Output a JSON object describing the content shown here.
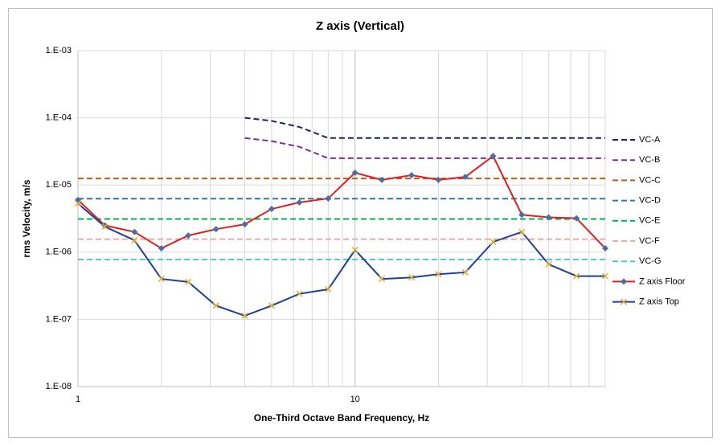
{
  "chart_data": {
    "type": "line",
    "title": "Z axis (Vertical)",
    "x_label": "One-Third Octave Band Frequency, Hz",
    "y_label": "rms Velocity, m/s",
    "x_log": true,
    "y_log": true,
    "grid": true,
    "legend": "right",
    "xlim": [
      1,
      80
    ],
    "xticks": [
      1,
      10
    ],
    "ylim": [
      1e-08,
      0.001
    ],
    "yticks": [
      {
        "value": 1e-08,
        "label": "1.E-08"
      },
      {
        "value": 1e-07,
        "label": "1.E-07"
      },
      {
        "value": 1e-06,
        "label": "1.E-06"
      },
      {
        "value": 1e-05,
        "label": "1.E-05"
      },
      {
        "value": 0.0001,
        "label": "1.E-04"
      },
      {
        "value": 0.001,
        "label": "1.E-03"
      }
    ],
    "x": [
      1,
      1.25,
      1.6,
      2,
      2.5,
      3.15,
      4,
      5,
      6.3,
      8,
      10,
      12.5,
      16,
      20,
      25,
      31.5,
      40,
      50,
      63,
      80
    ],
    "series": [
      {
        "name": "VC-A",
        "color": "#1f1f6b",
        "dashed": true,
        "values": [
          null,
          null,
          null,
          null,
          null,
          null,
          0.0001,
          9e-05,
          7.3e-05,
          5e-05,
          5e-05,
          5e-05,
          5e-05,
          5e-05,
          5e-05,
          5e-05,
          5e-05,
          5e-05,
          5e-05,
          5e-05
        ]
      },
      {
        "name": "VC-B",
        "color": "#7030a0",
        "dashed": true,
        "values": [
          null,
          null,
          null,
          null,
          null,
          null,
          5e-05,
          4.5e-05,
          3.7e-05,
          2.5e-05,
          2.5e-05,
          2.5e-05,
          2.5e-05,
          2.5e-05,
          2.5e-05,
          2.5e-05,
          2.5e-05,
          2.5e-05,
          2.5e-05,
          2.5e-05
        ]
      },
      {
        "name": "VC-C",
        "color": "#c55a11",
        "dashed": true,
        "values": [
          1.25e-05,
          1.25e-05,
          1.25e-05,
          1.25e-05,
          1.25e-05,
          1.25e-05,
          1.25e-05,
          1.25e-05,
          1.25e-05,
          1.25e-05,
          1.25e-05,
          1.25e-05,
          1.25e-05,
          1.25e-05,
          1.25e-05,
          1.25e-05,
          1.25e-05,
          1.25e-05,
          1.25e-05,
          1.25e-05
        ]
      },
      {
        "name": "VC-D",
        "color": "#2e75b6",
        "dashed": true,
        "values": [
          6.25e-06,
          6.25e-06,
          6.25e-06,
          6.25e-06,
          6.25e-06,
          6.25e-06,
          6.25e-06,
          6.25e-06,
          6.25e-06,
          6.25e-06,
          6.25e-06,
          6.25e-06,
          6.25e-06,
          6.25e-06,
          6.25e-06,
          6.25e-06,
          6.25e-06,
          6.25e-06,
          6.25e-06,
          6.25e-06
        ]
      },
      {
        "name": "VC-E",
        "color": "#00b050",
        "dashed": true,
        "values": [
          3.12e-06,
          3.12e-06,
          3.12e-06,
          3.12e-06,
          3.12e-06,
          3.12e-06,
          3.12e-06,
          3.12e-06,
          3.12e-06,
          3.12e-06,
          3.12e-06,
          3.12e-06,
          3.12e-06,
          3.12e-06,
          3.12e-06,
          3.12e-06,
          3.12e-06,
          3.12e-06,
          3.12e-06,
          3.12e-06
        ]
      },
      {
        "name": "VC-F",
        "color": "#f4a6a6",
        "dashed": true,
        "values": [
          1.56e-06,
          1.56e-06,
          1.56e-06,
          1.56e-06,
          1.56e-06,
          1.56e-06,
          1.56e-06,
          1.56e-06,
          1.56e-06,
          1.56e-06,
          1.56e-06,
          1.56e-06,
          1.56e-06,
          1.56e-06,
          1.56e-06,
          1.56e-06,
          1.56e-06,
          1.56e-06,
          1.56e-06,
          1.56e-06
        ]
      },
      {
        "name": "VC-G",
        "color": "#4bc8d0",
        "dashed": true,
        "values": [
          7.8e-07,
          7.8e-07,
          7.8e-07,
          7.8e-07,
          7.8e-07,
          7.8e-07,
          7.8e-07,
          7.8e-07,
          7.8e-07,
          7.8e-07,
          7.8e-07,
          7.8e-07,
          7.8e-07,
          7.8e-07,
          7.8e-07,
          7.8e-07,
          7.8e-07,
          7.8e-07,
          7.8e-07,
          7.8e-07
        ]
      },
      {
        "name": "Z axis Floor",
        "color": "#e02020",
        "marker": "diamond",
        "marker_color": "#4a6ea9",
        "values": [
          6e-06,
          2.5e-06,
          2e-06,
          1.14e-06,
          1.77e-06,
          2.2e-06,
          2.6e-06,
          4.4e-06,
          5.5e-06,
          6.3e-06,
          1.52e-05,
          1.19e-05,
          1.4e-05,
          1.19e-05,
          1.32e-05,
          2.7e-05,
          3.6e-06,
          3.3e-06,
          3.2e-06,
          1.14e-06
        ]
      },
      {
        "name": "Z axis Top",
        "color": "#1f3f9a",
        "marker": "x",
        "marker_color": "#e0b030",
        "values": [
          5.3e-06,
          2.4e-06,
          1.5e-06,
          4e-07,
          3.6e-07,
          1.6e-07,
          1.13e-07,
          1.6e-07,
          2.4e-07,
          2.8e-07,
          1.08e-06,
          4e-07,
          4.2e-07,
          4.7e-07,
          5e-07,
          1.42e-06,
          2e-06,
          6.6e-07,
          4.4e-07,
          4.4e-07
        ]
      }
    ]
  }
}
